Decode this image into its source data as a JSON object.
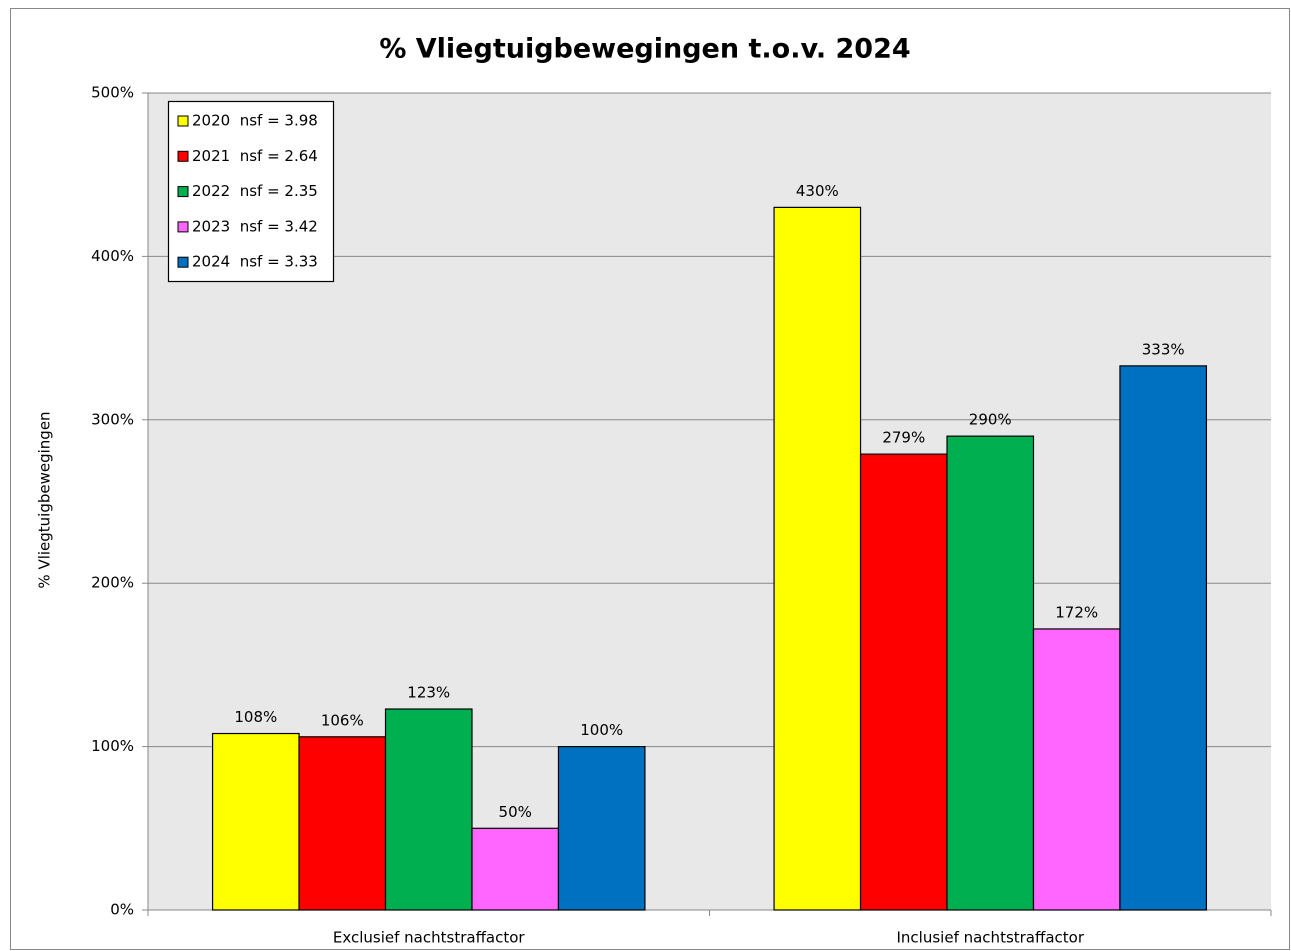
{
  "chart_data": {
    "type": "bar",
    "title": "% Vliegtuigbewegingen t.o.v. 2024",
    "ylabel": "% Vliegtuigbewegingen",
    "categories": [
      "Exclusief nachtstraffactor",
      "Inclusief nachtstraffactor"
    ],
    "series": [
      {
        "name": "2020  nsf = 3.98",
        "color": "#ffff00",
        "values": [
          108,
          430
        ],
        "value_labels": [
          "108%",
          "430%"
        ]
      },
      {
        "name": "2021  nsf = 2.64",
        "color": "#ff0000",
        "values": [
          106,
          279
        ],
        "value_labels": [
          "106%",
          "279%"
        ]
      },
      {
        "name": "2022  nsf = 2.35",
        "color": "#00b050",
        "values": [
          123,
          290
        ],
        "value_labels": [
          "123%",
          "290%"
        ]
      },
      {
        "name": "2023  nsf = 3.42",
        "color": "#ff66ff",
        "values": [
          50,
          172
        ],
        "value_labels": [
          "50%",
          "172%"
        ]
      },
      {
        "name": "2024  nsf = 3.33",
        "color": "#0070c0",
        "values": [
          100,
          333
        ],
        "value_labels": [
          "100%",
          "333%"
        ]
      }
    ],
    "ylim": [
      0,
      500
    ],
    "yticks": [
      {
        "value": 0,
        "label": "0%"
      },
      {
        "value": 100,
        "label": "100%"
      },
      {
        "value": 200,
        "label": "200%"
      },
      {
        "value": 300,
        "label": "300%"
      },
      {
        "value": 400,
        "label": "400%"
      },
      {
        "value": 500,
        "label": "500%"
      }
    ],
    "grid": true,
    "legend": "upper left"
  }
}
